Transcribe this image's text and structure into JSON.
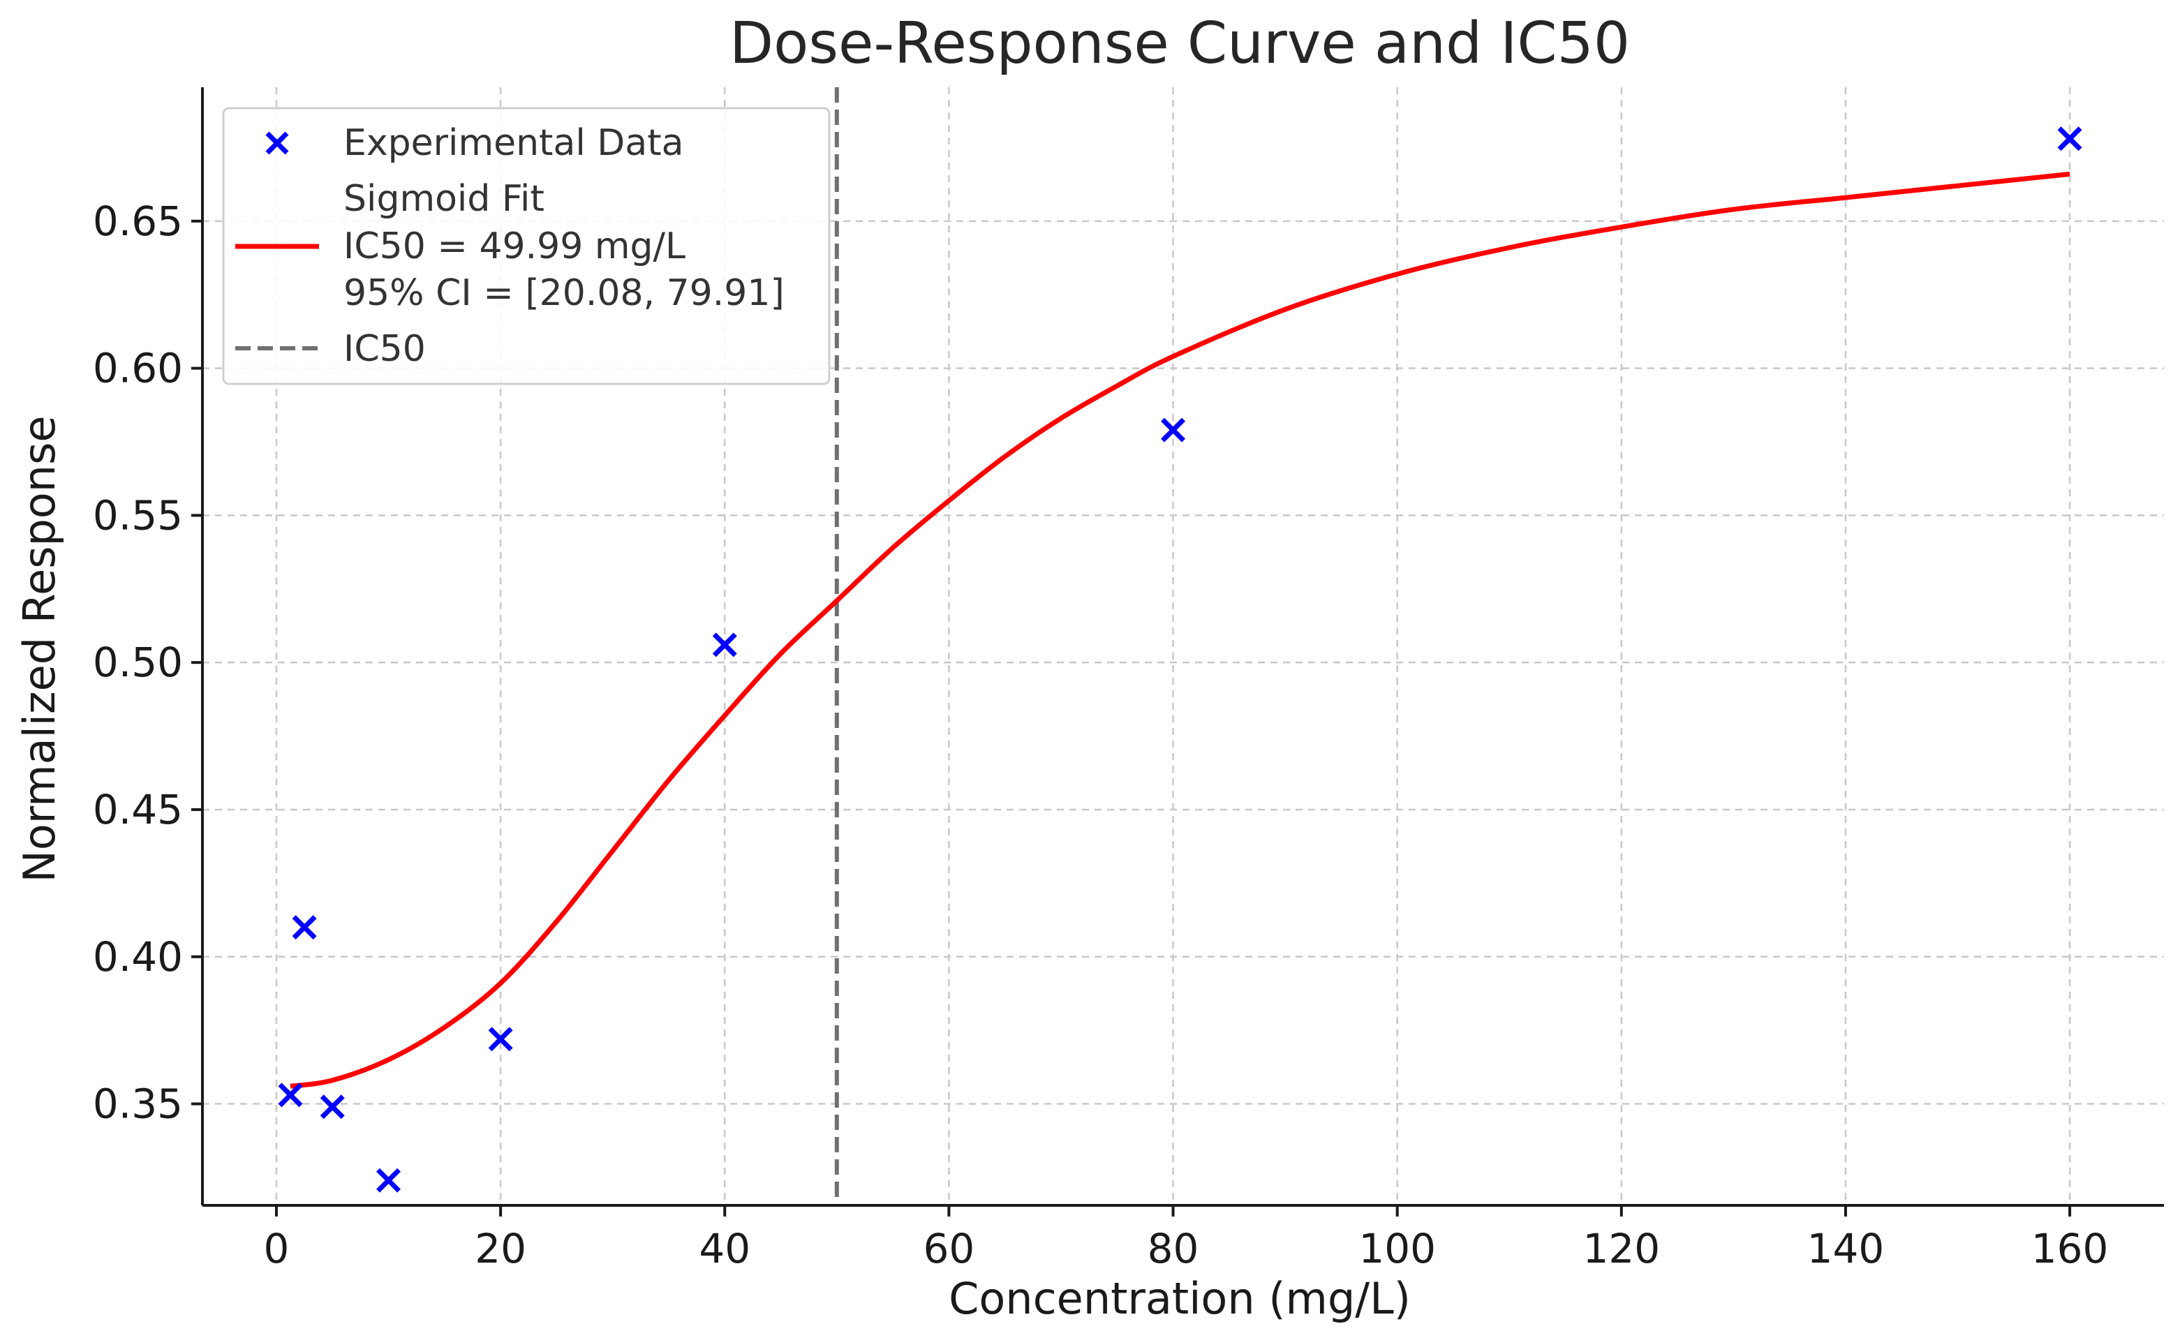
{
  "chart_data": {
    "type": "scatter",
    "title": "Dose-Response Curve and IC50",
    "xlabel": "Concentration (mg/L)",
    "ylabel": "Normalized Response",
    "xlim": [
      -6.6,
      168.4
    ],
    "ylim": [
      0.3155,
      0.6955
    ],
    "x_ticks": [
      0,
      20,
      40,
      60,
      80,
      100,
      120,
      140,
      160
    ],
    "x_tick_labels": [
      "0",
      "20",
      "40",
      "60",
      "80",
      "100",
      "120",
      "140",
      "160"
    ],
    "y_ticks": [
      0.35,
      0.4,
      0.45,
      0.5,
      0.55,
      0.6,
      0.65
    ],
    "y_tick_labels": [
      "0.35",
      "0.40",
      "0.45",
      "0.50",
      "0.55",
      "0.60",
      "0.65"
    ],
    "grid": true,
    "legend_position": "top-left",
    "series": [
      {
        "name": "Experimental Data",
        "kind": "scatter",
        "marker": "x",
        "color": "#0000ff",
        "x": [
          1.25,
          2.5,
          5,
          10,
          20,
          40,
          80,
          160
        ],
        "y": [
          0.353,
          0.41,
          0.349,
          0.324,
          0.372,
          0.506,
          0.579,
          0.678
        ]
      },
      {
        "name": "Sigmoid Fit",
        "kind": "line",
        "color": "#ff0000",
        "x": [
          1.25,
          5,
          10,
          15,
          20,
          25,
          30,
          35,
          40,
          45,
          50,
          55,
          60,
          65,
          70,
          75,
          80,
          90,
          100,
          110,
          120,
          130,
          140,
          150,
          160
        ],
        "y": [
          0.356,
          0.358,
          0.365,
          0.376,
          0.391,
          0.412,
          0.436,
          0.46,
          0.482,
          0.503,
          0.521,
          0.539,
          0.555,
          0.57,
          0.583,
          0.594,
          0.604,
          0.62,
          0.632,
          0.641,
          0.648,
          0.654,
          0.658,
          0.662,
          0.666
        ]
      },
      {
        "name": "IC50",
        "kind": "vline",
        "color": "#707070",
        "x": 50
      }
    ],
    "legend": [
      {
        "label": "Experimental Data",
        "lines": [
          "Experimental Data"
        ]
      },
      {
        "label": "Sigmoid Fit",
        "lines": [
          "Sigmoid Fit",
          "IC50 = 49.99 mg/L",
          "95% CI = [20.08, 79.91]"
        ]
      },
      {
        "label": "IC50",
        "lines": [
          "IC50"
        ]
      }
    ]
  }
}
